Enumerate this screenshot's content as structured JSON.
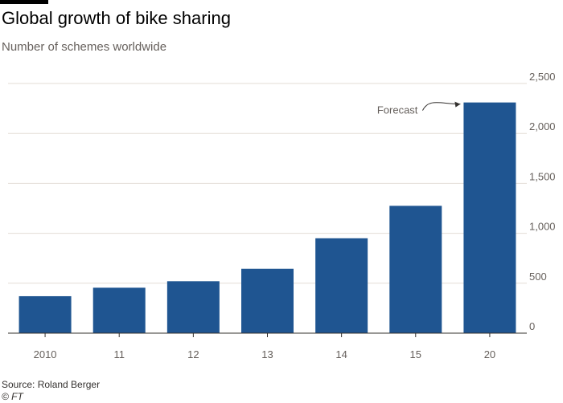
{
  "header": {
    "title": "Global growth of bike sharing",
    "subtitle": "Number of schemes worldwide"
  },
  "footer": {
    "source": "Source: Roland Berger",
    "credit": "© FT"
  },
  "colors": {
    "bar": "#1f5591",
    "grid": "#e3ddd6",
    "axis": "#33302e",
    "text": "#66605c"
  },
  "chart_data": {
    "type": "bar",
    "categories": [
      "2010",
      "11",
      "12",
      "13",
      "14",
      "15",
      "20"
    ],
    "values": [
      370,
      455,
      520,
      645,
      950,
      1275,
      2310
    ],
    "ylim": [
      0,
      2500
    ],
    "yticks": [
      0,
      500,
      1000,
      1500,
      2000,
      2500
    ],
    "ytick_labels": [
      "0",
      "500",
      "1,000",
      "1,500",
      "2,000",
      "2,500"
    ],
    "yaxis_side": "right",
    "grid": true,
    "annotations": [
      {
        "text": "Forecast",
        "target_category": "20"
      }
    ]
  }
}
